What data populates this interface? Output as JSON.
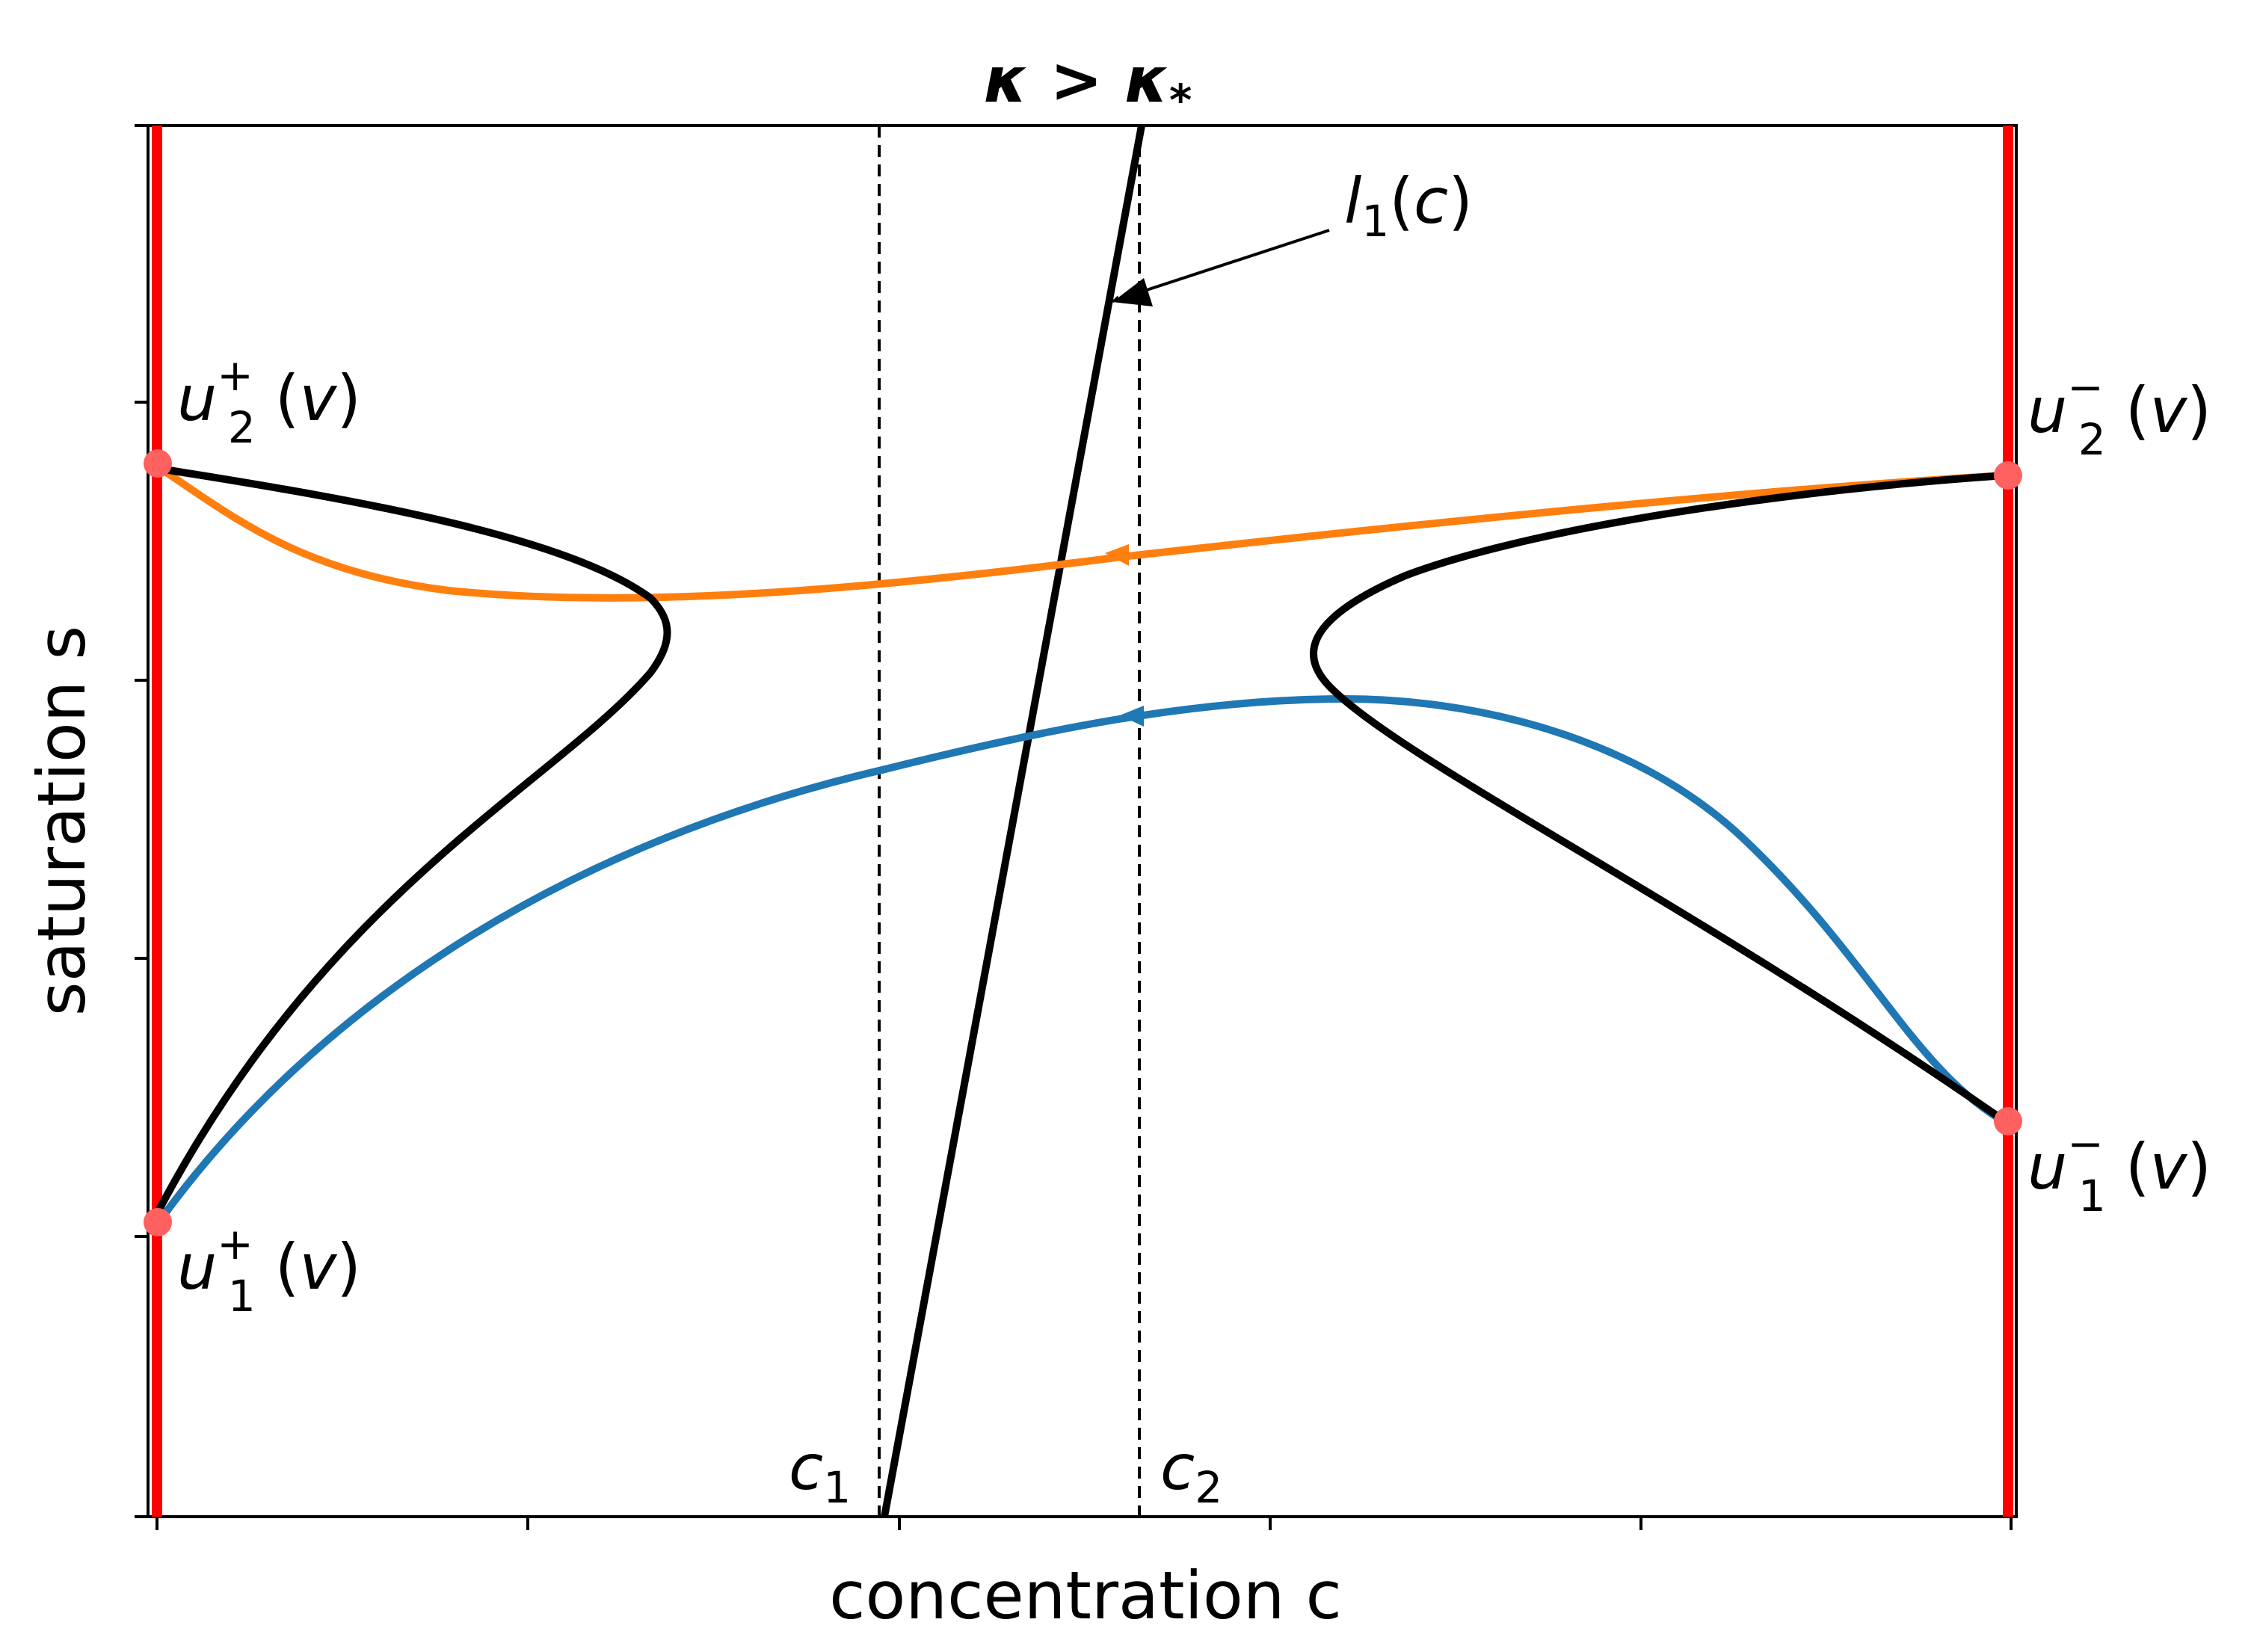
{
  "title": "κ > κ*",
  "axes": {
    "xlabel": "concentration c",
    "ylabel": "saturation s",
    "ticks_labelled": false,
    "grid": false
  },
  "annotations": {
    "c1": "c1",
    "c2": "c2",
    "l1": "l1(c)",
    "u2_plus": "u2+(v)",
    "u1_plus": "u1+(v)",
    "u2_minus": "u2−(v)",
    "u1_minus": "u1−(v)"
  },
  "colors": {
    "boundary": "#ff0000",
    "orange_curve": "#ff7f0e",
    "blue_curve": "#1f77b4",
    "black_curve": "#000000",
    "points": "#ff6060"
  }
}
